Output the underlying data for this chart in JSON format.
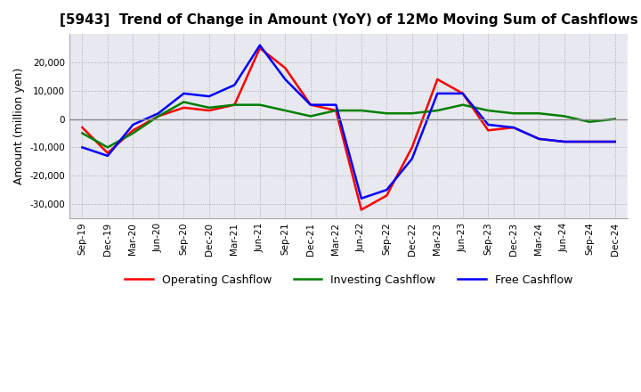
{
  "title": "[5943]  Trend of Change in Amount (YoY) of 12Mo Moving Sum of Cashflows",
  "ylabel": "Amount (million yen)",
  "x_labels": [
    "Sep-19",
    "Dec-19",
    "Mar-20",
    "Jun-20",
    "Sep-20",
    "Dec-20",
    "Mar-21",
    "Jun-21",
    "Sep-21",
    "Dec-21",
    "Mar-22",
    "Jun-22",
    "Sep-22",
    "Dec-22",
    "Mar-23",
    "Jun-23",
    "Sep-23",
    "Dec-23",
    "Mar-24",
    "Jun-24",
    "Sep-24",
    "Dec-24"
  ],
  "operating": [
    -3000,
    -12000,
    -4000,
    1000,
    4000,
    3000,
    5000,
    25000,
    18000,
    5000,
    3000,
    -32000,
    -27000,
    -10000,
    14000,
    9000,
    -4000,
    -3000,
    -7000,
    -8000,
    -8000,
    -8000
  ],
  "investing": [
    -5000,
    -10000,
    -5000,
    1000,
    6000,
    4000,
    5000,
    5000,
    3000,
    1000,
    3000,
    3000,
    2000,
    2000,
    3000,
    5000,
    3000,
    2000,
    2000,
    1000,
    -1000,
    0
  ],
  "free": [
    -10000,
    -13000,
    -2000,
    2000,
    9000,
    8000,
    12000,
    26000,
    14000,
    5000,
    5000,
    -28000,
    -25000,
    -14000,
    9000,
    9000,
    -2000,
    -3000,
    -7000,
    -8000,
    -8000,
    -8000
  ],
  "operating_color": "#ff0000",
  "investing_color": "#008000",
  "free_color": "#0000ff",
  "ylim": [
    -35000,
    30000
  ],
  "yticks": [
    -30000,
    -20000,
    -10000,
    0,
    10000,
    20000
  ],
  "grid_color": "#aaaaaa",
  "background_color": "#ffffff",
  "plot_bg_color": "#e8e8f0"
}
